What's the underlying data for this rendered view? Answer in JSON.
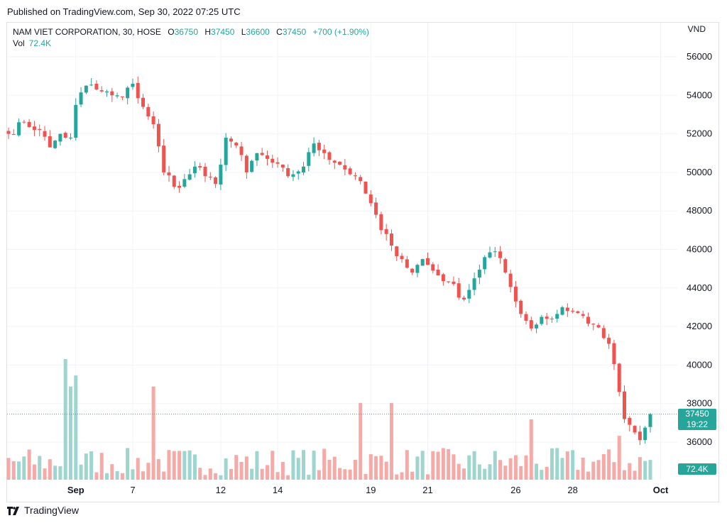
{
  "header": {
    "published": "Published on TradingView.com, Sep 30, 2022 07:25 UTC",
    "symbol": "NAM VIET CORPORATION, 30, HOSE",
    "open_label": "O",
    "open": "36750",
    "high_label": "H",
    "high": "37450",
    "low_label": "L",
    "low": "36600",
    "close_label": "C",
    "close": "37450",
    "change": "+700 (+1.90%)",
    "vol_label": "Vol",
    "vol": "72.4K",
    "currency": "VND"
  },
  "badges": {
    "price": "37450",
    "countdown": "19:22",
    "volume": "72.4K"
  },
  "footer": {
    "brand": "TradingView"
  },
  "colors": {
    "up": "#26a69a",
    "down": "#ef5350",
    "vol_up": "#9fd5cf",
    "vol_down": "#f5aaa7",
    "grid": "#f0f3fa"
  },
  "chart_data": {
    "type": "candlestick",
    "title": "NAM VIET CORPORATION, 30, HOSE",
    "ylabel": "VND",
    "ylim": [
      34500,
      57000
    ],
    "yticks": [
      36000,
      38000,
      40000,
      42000,
      44000,
      46000,
      48000,
      50000,
      52000,
      54000,
      56000
    ],
    "xticks": [
      {
        "label": "Sep",
        "bar": 13
      },
      {
        "label": "7",
        "bar": 24
      },
      {
        "label": "12",
        "bar": 41
      },
      {
        "label": "14",
        "bar": 52
      },
      {
        "label": "19",
        "bar": 70
      },
      {
        "label": "21",
        "bar": 81
      },
      {
        "label": "26",
        "bar": 98
      },
      {
        "label": "28",
        "bar": 109
      },
      {
        "label": "Oct",
        "bar": 126
      }
    ],
    "last_price": 37450,
    "close_path": [
      [
        0,
        52000
      ],
      [
        3,
        52600
      ],
      [
        6,
        52200
      ],
      [
        8,
        51300
      ],
      [
        10,
        52000
      ],
      [
        12,
        51800
      ],
      [
        13,
        53500
      ],
      [
        15,
        54500
      ],
      [
        17,
        54300
      ],
      [
        20,
        54000
      ],
      [
        22,
        53900
      ],
      [
        24,
        54600
      ],
      [
        26,
        53400
      ],
      [
        28,
        52500
      ],
      [
        30,
        50000
      ],
      [
        33,
        49200
      ],
      [
        36,
        50300
      ],
      [
        38,
        49800
      ],
      [
        40,
        49400
      ],
      [
        42,
        51800
      ],
      [
        44,
        51400
      ],
      [
        46,
        50000
      ],
      [
        48,
        51000
      ],
      [
        51,
        50500
      ],
      [
        54,
        49800
      ],
      [
        57,
        50300
      ],
      [
        59,
        51500
      ],
      [
        61,
        51000
      ],
      [
        64,
        50400
      ],
      [
        67,
        49800
      ],
      [
        70,
        48400
      ],
      [
        72,
        47000
      ],
      [
        74,
        46200
      ],
      [
        76,
        45500
      ],
      [
        78,
        44800
      ],
      [
        80,
        45500
      ],
      [
        82,
        44900
      ],
      [
        85,
        44300
      ],
      [
        88,
        43400
      ],
      [
        90,
        44500
      ],
      [
        92,
        45600
      ],
      [
        94,
        45900
      ],
      [
        96,
        44800
      ],
      [
        98,
        43300
      ],
      [
        101,
        41900
      ],
      [
        103,
        42500
      ],
      [
        105,
        42400
      ],
      [
        107,
        43000
      ],
      [
        110,
        42700
      ],
      [
        113,
        42100
      ],
      [
        116,
        41100
      ],
      [
        118,
        38600
      ],
      [
        119,
        37200
      ],
      [
        121,
        36500
      ],
      [
        122,
        36100
      ],
      [
        123,
        36750
      ],
      [
        124,
        37450
      ]
    ],
    "volume_spikes": [
      {
        "bar": 11,
        "up": true,
        "value": 220
      },
      {
        "bar": 12,
        "up": true,
        "value": 170
      },
      {
        "bar": 13,
        "up": true,
        "value": 190
      },
      {
        "bar": 28,
        "up": false,
        "value": 170
      },
      {
        "bar": 68,
        "up": false,
        "value": 140
      },
      {
        "bar": 74,
        "up": false,
        "value": 140
      },
      {
        "bar": 101,
        "up": false,
        "value": 110
      },
      {
        "bar": 118,
        "up": false,
        "value": 80
      }
    ]
  }
}
